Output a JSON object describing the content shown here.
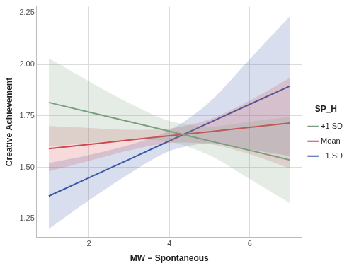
{
  "chart_data": {
    "type": "line",
    "x_label": "MW − Spontaneous",
    "y_label": "Creative Achievement",
    "legend_title": "SP_H",
    "legend": "right",
    "grid": true,
    "x": [
      1,
      2,
      3,
      4,
      5,
      6,
      7
    ],
    "xlim": [
      0.7,
      7.3
    ],
    "xticks": [
      2,
      4,
      6
    ],
    "ylim": [
      1.16,
      2.28
    ],
    "yticks": [
      {
        "value": 1.25,
        "label": "1.25"
      },
      {
        "value": 1.5,
        "label": "1.50"
      },
      {
        "value": 1.75,
        "label": "1.75"
      },
      {
        "value": 2.0,
        "label": "2.00"
      },
      {
        "value": 2.25,
        "label": "2.25"
      }
    ],
    "series": [
      {
        "name": "+1 SD",
        "color": "#7a9e7e",
        "line_style": "solid",
        "values": [
          1.815,
          1.768,
          1.722,
          1.675,
          1.628,
          1.582,
          1.535
        ],
        "lower": [
          1.6,
          1.618,
          1.632,
          1.625,
          1.558,
          1.442,
          1.325
        ],
        "upper": [
          2.03,
          1.918,
          1.812,
          1.725,
          1.698,
          1.722,
          1.745
        ]
      },
      {
        "name": "Mean",
        "color": "#d0464f",
        "line_style": "solid",
        "values": [
          1.59,
          1.611,
          1.632,
          1.653,
          1.673,
          1.694,
          1.715
        ],
        "lower": [
          1.48,
          1.531,
          1.582,
          1.618,
          1.613,
          1.564,
          1.495
        ],
        "upper": [
          1.7,
          1.691,
          1.682,
          1.688,
          1.733,
          1.824,
          1.935
        ]
      },
      {
        "name": "−1 SD",
        "color": "#3b5ba5",
        "line_style": "solid",
        "values": [
          1.36,
          1.449,
          1.538,
          1.628,
          1.717,
          1.806,
          1.895
        ],
        "lower": [
          1.2,
          1.339,
          1.468,
          1.578,
          1.617,
          1.586,
          1.555
        ],
        "upper": [
          1.52,
          1.559,
          1.608,
          1.678,
          1.817,
          2.026,
          2.235
        ]
      }
    ]
  }
}
